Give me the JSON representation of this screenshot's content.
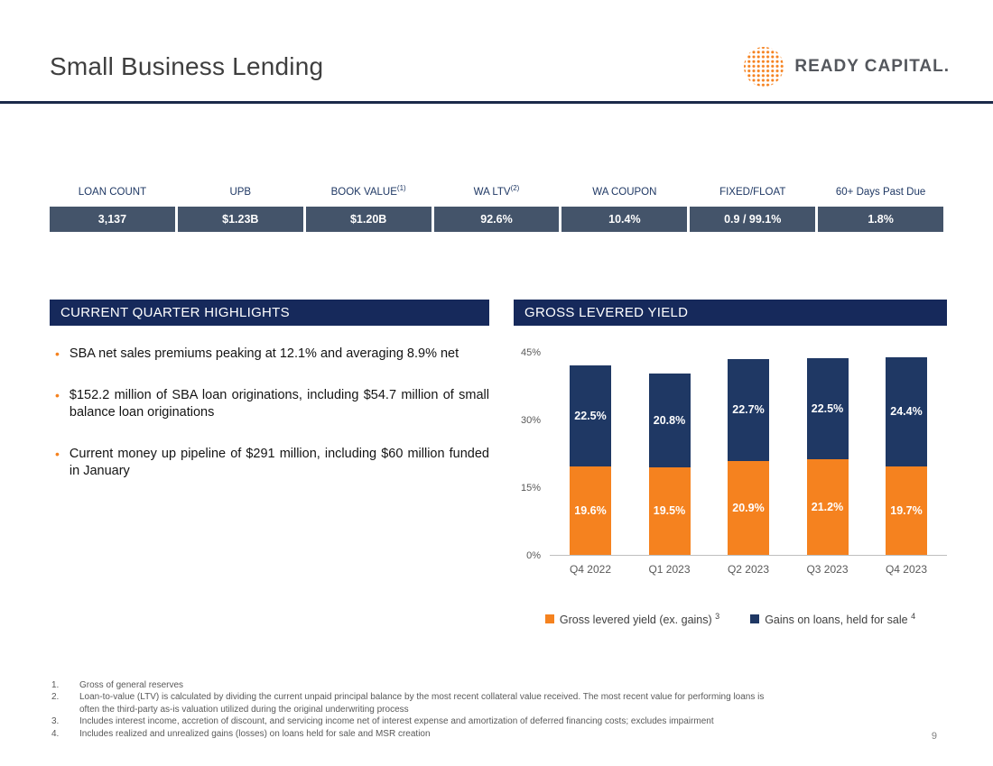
{
  "slide": {
    "title": "Small Business Lending",
    "page_number": "9"
  },
  "logo": {
    "text": "READY CAPITAL.",
    "icon": "dotted-sphere",
    "accent_color": "#F5821F"
  },
  "stats_table": {
    "columns": [
      {
        "header": "LOAN COUNT",
        "value": "3,137"
      },
      {
        "header": "UPB",
        "value": "$1.23B"
      },
      {
        "header": "BOOK VALUE",
        "header_sup": "(1)",
        "value": "$1.20B"
      },
      {
        "header": "WA LTV",
        "header_sup": "(2)",
        "value": "92.6%"
      },
      {
        "header": "WA COUPON",
        "value": "10.4%"
      },
      {
        "header": "FIXED/FLOAT",
        "value": "0.9 / 99.1%"
      },
      {
        "header": "60+ Days Past Due",
        "value": "1.8%"
      }
    ]
  },
  "highlights": {
    "title": "CURRENT QUARTER HIGHLIGHTS",
    "bullets": [
      "SBA net sales premiums peaking at 12.1% and averaging 8.9% net",
      "$152.2 million of SBA loan originations, including $54.7 million of small balance loan originations",
      "Current money up pipeline of $291 million, including $60 million funded in January"
    ]
  },
  "chart": {
    "title": "GROSS LEVERED YIELD"
  },
  "chart_data": {
    "type": "bar",
    "stacked": true,
    "title": "GROSS LEVERED YIELD",
    "categories": [
      "Q4 2022",
      "Q1 2023",
      "Q2 2023",
      "Q3 2023",
      "Q4 2023"
    ],
    "series": [
      {
        "name": "Gross levered yield (ex. gains)",
        "sup": "3",
        "color": "#F5821F",
        "values": [
          19.6,
          19.5,
          20.9,
          21.2,
          19.7
        ]
      },
      {
        "name": "Gains on loans, held for sale",
        "sup": "4",
        "color": "#1F3864",
        "values": [
          22.5,
          20.8,
          22.7,
          22.5,
          24.4
        ]
      }
    ],
    "y_ticks": [
      "0%",
      "15%",
      "30%",
      "45%"
    ],
    "ylim": [
      0,
      45
    ],
    "value_label_format": "percent",
    "grid": false,
    "legend_position": "bottom"
  },
  "footnotes": [
    "Gross of general reserves",
    "Loan-to-value (LTV) is calculated by dividing the current unpaid principal balance by the most recent collateral value received. The most recent value for performing loans is often the third-party as-is valuation utilized during the original underwriting process",
    "Includes interest income, accretion of discount, and servicing income net of interest expense and amortization of deferred financing costs; excludes impairment",
    "Includes realized and unrealized gains (losses) on loans held for sale and MSR creation"
  ],
  "colors": {
    "navy": "#1F3864",
    "orange": "#F5821F",
    "table_cell": "#44546A",
    "section_header_bar": "#16295B",
    "divider": "#1B2A4A"
  }
}
